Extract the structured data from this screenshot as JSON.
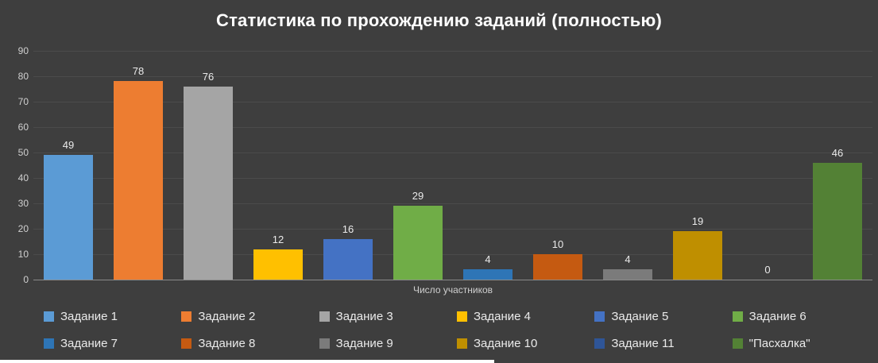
{
  "title": "Статистика по прохождению заданий (полностью)",
  "chart_data": {
    "type": "bar",
    "title": "Статистика по прохождению заданий (полностью)",
    "categories": [
      "Задание 1",
      "Задание 2",
      "Задание 3",
      "Задание 4",
      "Задание 5",
      "Задание 6",
      "Задание 7",
      "Задание 8",
      "Задание 9",
      "Задание 10",
      "Задание 11",
      "\"Пасхалка\""
    ],
    "values": [
      49,
      78,
      76,
      12,
      16,
      29,
      4,
      10,
      4,
      19,
      0,
      46
    ],
    "colors": [
      "#5B9BD5",
      "#ED7D31",
      "#A5A5A5",
      "#FFC000",
      "#4472C4",
      "#70AD47",
      "#2E75B6",
      "#C55A11",
      "#7B7B7B",
      "#BF8F00",
      "#2F5597",
      "#538135"
    ],
    "xlabel": "Число участников",
    "ylim": [
      0,
      90
    ],
    "ytick_step": 10,
    "grid": true,
    "legend_position": "bottom",
    "legend_rows": 2,
    "legend_columns": 6
  },
  "colors": {
    "background": "#3E3E3E",
    "gridline": "#4B4B4B",
    "axis_line": "#8A8A8A",
    "title_text": "#FFFFFF",
    "tick_text": "#D0D0D0",
    "value_text": "#EAEAEA"
  }
}
